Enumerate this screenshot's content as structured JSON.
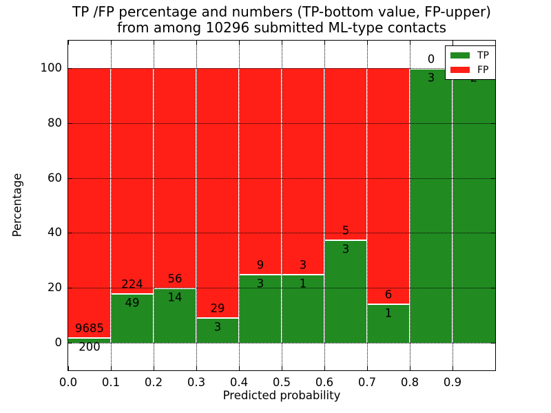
{
  "title": {
    "line1": "TP /FP percentage and numbers (TP-bottom value, FP-upper)",
    "line2": "from among 10296 submitted ML-type contacts"
  },
  "axes": {
    "xlabel": "Predicted probability",
    "ylabel": "Percentage",
    "x_tick_labels": [
      "0.0",
      "0.1",
      "0.2",
      "0.3",
      "0.4",
      "0.5",
      "0.6",
      "0.7",
      "0.8",
      "0.9"
    ],
    "y_tick_labels": [
      "0",
      "20",
      "40",
      "60",
      "80",
      "100"
    ],
    "y_tick_values": [
      0,
      20,
      40,
      60,
      80,
      100
    ]
  },
  "colors": {
    "tp_green": "#218a21",
    "fp_red": "#ff1f17",
    "grid": "#000000",
    "background": "#ffffff"
  },
  "chart_data": {
    "type": "bar",
    "stacked": true,
    "normalized_to_percent": true,
    "title": "TP /FP percentage and numbers (TP-bottom value, FP-upper) from among 10296 submitted ML-type contacts",
    "xlabel": "Predicted probability",
    "ylabel": "Percentage",
    "xlim": [
      0.0,
      1.0
    ],
    "ylim": [
      -10,
      110
    ],
    "grid": "dotted black, x every 0.1 and y every 20",
    "bin_width": 0.1,
    "bin_starts": [
      0.0,
      0.1,
      0.2,
      0.3,
      0.4,
      0.5,
      0.6,
      0.7,
      0.8,
      0.9
    ],
    "categories": [
      "0.0-0.1",
      "0.1-0.2",
      "0.2-0.3",
      "0.3-0.4",
      "0.4-0.5",
      "0.5-0.6",
      "0.6-0.7",
      "0.7-0.8",
      "0.8-0.9",
      "0.9-1.0"
    ],
    "series": [
      {
        "name": "TP",
        "color": "#218a21",
        "counts": [
          200,
          49,
          14,
          3,
          3,
          1,
          3,
          1,
          3,
          2
        ],
        "percent": [
          2.0,
          17.9,
          20.0,
          9.4,
          25.0,
          25.0,
          37.5,
          14.3,
          100.0,
          100.0
        ]
      },
      {
        "name": "FP",
        "color": "#ff1f17",
        "counts": [
          9685,
          224,
          56,
          29,
          9,
          3,
          5,
          6,
          0,
          0
        ],
        "percent": [
          98.0,
          82.1,
          80.0,
          90.6,
          75.0,
          75.0,
          62.5,
          85.7,
          0.0,
          0.0
        ]
      }
    ],
    "total_contacts": 10296,
    "bar_labels": {
      "fp": [
        "9685",
        "224",
        "56",
        "29",
        "9",
        "3",
        "5",
        "6",
        "0",
        ""
      ],
      "tp": [
        "200",
        "49",
        "14",
        "3",
        "3",
        "1",
        "3",
        "1",
        "3",
        "2"
      ]
    },
    "legend": {
      "position": "upper right",
      "entries": [
        {
          "label": "TP",
          "color": "#218a21"
        },
        {
          "label": "FP",
          "color": "#ff1f17"
        }
      ]
    }
  }
}
